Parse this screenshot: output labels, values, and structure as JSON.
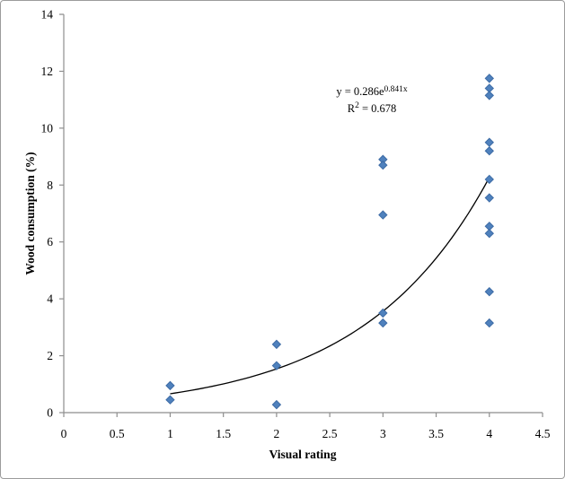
{
  "chart_data": {
    "type": "scatter",
    "title": "",
    "xlabel": "Visual rating",
    "ylabel": "Wood consumption (%)",
    "xlim": [
      0,
      4.5
    ],
    "ylim": [
      0,
      14
    ],
    "x_ticks": [
      "0",
      "0.5",
      "1",
      "1.5",
      "2",
      "2.5",
      "3",
      "3.5",
      "4",
      "4.5"
    ],
    "x_tick_values": [
      0,
      0.5,
      1,
      1.5,
      2,
      2.5,
      3,
      3.5,
      4,
      4.5
    ],
    "y_ticks": [
      "0",
      "2",
      "4",
      "6",
      "8",
      "10",
      "12",
      "14"
    ],
    "y_tick_values": [
      0,
      2,
      4,
      6,
      8,
      10,
      12,
      14
    ],
    "grid": false,
    "legend_position": "none",
    "marker": {
      "shape": "diamond",
      "fill": "#4f81bd",
      "stroke": "#3d6ba5",
      "size": 9
    },
    "axis_color": "#8e8e8e",
    "points": [
      [
        1,
        0.95
      ],
      [
        1,
        0.45
      ],
      [
        2,
        2.4
      ],
      [
        2,
        1.65
      ],
      [
        2,
        0.28
      ],
      [
        3,
        8.9
      ],
      [
        3,
        8.7
      ],
      [
        3,
        6.95
      ],
      [
        3,
        3.5
      ],
      [
        3,
        3.15
      ],
      [
        4,
        11.75
      ],
      [
        4,
        11.4
      ],
      [
        4,
        11.15
      ],
      [
        4,
        9.5
      ],
      [
        4,
        9.2
      ],
      [
        4,
        8.2
      ],
      [
        4,
        7.55
      ],
      [
        4,
        6.55
      ],
      [
        4,
        6.3
      ],
      [
        4,
        4.25
      ],
      [
        4,
        3.15
      ]
    ],
    "trendline": {
      "type": "exponential",
      "a": 0.286,
      "b": 0.841,
      "x_start": 1,
      "x_end": 4,
      "color": "#000000"
    },
    "equation": {
      "prefix": "y = 0.286e",
      "exponent": "0.841x",
      "r2_base": "R",
      "r2_sup": "2",
      "r2_rest": " = 0.678"
    }
  }
}
